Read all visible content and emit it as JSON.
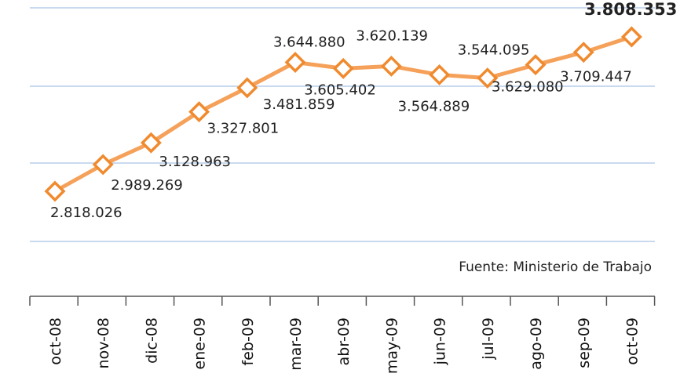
{
  "chart_data": {
    "type": "line",
    "categories": [
      "oct-08",
      "nov-08",
      "dic-08",
      "ene-09",
      "feb-09",
      "mar-09",
      "abr-09",
      "may-09",
      "jun-09",
      "jul-09",
      "ago-09",
      "sep-09",
      "oct-09"
    ],
    "series": [
      {
        "values": [
          2818026,
          2989269,
          3128963,
          3327801,
          3481859,
          3644880,
          3605402,
          3620139,
          3564889,
          3544095,
          3629080,
          3709447,
          3808353
        ],
        "labels": [
          "2.818.026",
          "2.989.269",
          "3.128.963",
          "3.327.801",
          "3.481.859",
          "3.644.880",
          "3.605.402",
          "3.620.139",
          "3.564.889",
          "3.544.095",
          "3.629.080",
          "3.709.447",
          "3.808.353"
        ]
      }
    ],
    "annotation": "Fuente: Ministerio de Trabajo",
    "colors": {
      "line": "#f5a15a",
      "marker_stroke": "#f08a2e",
      "grid": "#a9c3e6"
    },
    "grid": true,
    "legend": "none"
  }
}
